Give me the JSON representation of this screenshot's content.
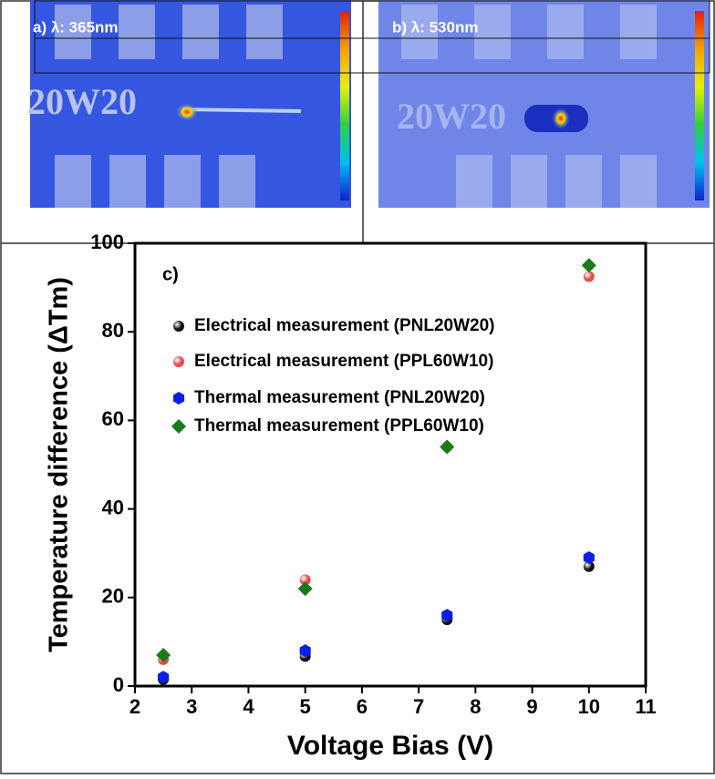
{
  "panels": [
    {
      "label": "a) λ: 365nm"
    },
    {
      "label": "b) λ: 530nm"
    }
  ],
  "chart_data": {
    "type": "scatter",
    "annotation": "c)",
    "xlabel": "Voltage Bias (V)",
    "ylabel": "Temperature difference (ΔTm)",
    "x": [
      2.5,
      5,
      7.5,
      10
    ],
    "series": [
      {
        "name": "Electrical measurement (PNL20W20)",
        "color": "#111111",
        "marker": "sphere",
        "values": [
          1.5,
          6.7,
          15,
          27
        ]
      },
      {
        "name": "Electrical measurement (PPL60W10)",
        "color": "#e84a4a",
        "marker": "sphere",
        "values": [
          6,
          24,
          54,
          92.5
        ]
      },
      {
        "name": "Thermal measurement (PNL20W20)",
        "color": "#0b1ee8",
        "marker": "hexagon",
        "values": [
          2,
          8,
          16,
          29
        ]
      },
      {
        "name": "Thermal measurement (PPL60W10)",
        "color": "#1a7a1a",
        "marker": "diamond",
        "values": [
          7,
          22,
          54,
          95
        ]
      }
    ],
    "xlim": [
      2,
      11
    ],
    "xticks": [
      2,
      3,
      4,
      5,
      6,
      7,
      8,
      9,
      10,
      11
    ],
    "ylim": [
      0,
      100
    ],
    "yticks": [
      0,
      20,
      40,
      60,
      80,
      100
    ]
  }
}
